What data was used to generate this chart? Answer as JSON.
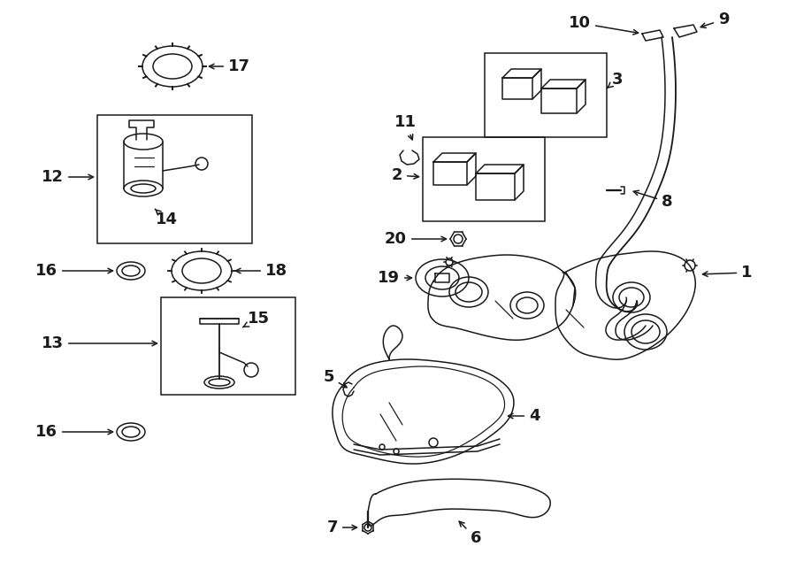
{
  "bg_color": "#ffffff",
  "line_color": "#1a1a1a",
  "fig_width": 9.0,
  "fig_height": 6.61,
  "dpi": 100,
  "label_fontsize": 13,
  "lw": 1.1
}
